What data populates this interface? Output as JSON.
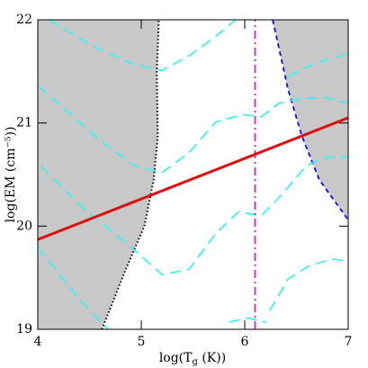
{
  "chart_data": {
    "type": "line",
    "xlabel": {
      "main": "log(T",
      "sub": "g",
      "rest": " (K))"
    },
    "ylabel": "log(EM (cm⁻⁵))",
    "xlim": [
      4,
      7
    ],
    "ylim": [
      19,
      22
    ],
    "xticks": [
      4,
      5,
      6,
      7
    ],
    "yticks": [
      19,
      20,
      21,
      22
    ],
    "series": [
      {
        "color": "#c8c8c8",
        "fill_side": "left",
        "dash": "dotted",
        "line_color": "#000000",
        "x": [
          4.62,
          4.85,
          5.03,
          5.12,
          5.16,
          5.15,
          5.17
        ],
        "values": [
          19,
          19.58,
          20,
          20.45,
          20.88,
          21.49,
          22
        ]
      },
      {
        "color": "#c8c8c8",
        "fill_side": "right",
        "dash": "dashed",
        "line_color": "#1010d0",
        "x": [
          6.27,
          6.42,
          6.55,
          6.72,
          7
        ],
        "values": [
          22,
          21.32,
          20.88,
          20.45,
          20.06
        ]
      },
      {
        "color": "#40f0f0",
        "dash": "longdash",
        "x": [
          4.11,
          4.5,
          4.94,
          5.2,
          5.46,
          5.72,
          5.91
        ],
        "values": [
          22,
          21.76,
          21.56,
          21.51,
          21.65,
          21.84,
          22
        ]
      },
      {
        "color": "#40f0f0",
        "dash": "longdash",
        "x": [
          6.42,
          6.68,
          7
        ],
        "values": [
          21.45,
          21.58,
          21.67
        ]
      },
      {
        "color": "#40f0f0",
        "dash": "longdash",
        "x": [
          4,
          4.24,
          4.59,
          4.94,
          5.2,
          5.46,
          5.72,
          5.98,
          6.16,
          6.33,
          6.5,
          6.77,
          7
        ],
        "values": [
          21.36,
          21.15,
          20.84,
          20.58,
          20.52,
          20.71,
          21.01,
          21.08,
          21.06,
          21.19,
          21.23,
          21.25,
          21.19
        ]
      },
      {
        "color": "#40f0f0",
        "dash": "longdash",
        "x": [
          4.03,
          4.42,
          4.85,
          5.2,
          5.46,
          5.72,
          5.94,
          6.16,
          6.37,
          6.59,
          6.77,
          7
        ],
        "values": [
          20.58,
          20.19,
          19.84,
          19.53,
          19.58,
          19.93,
          20.14,
          20.1,
          20.32,
          20.58,
          20.67,
          20.67
        ]
      },
      {
        "color": "#40f0f0",
        "dash": "longdash",
        "x": [
          4,
          4.24,
          4.5,
          4.68
        ],
        "values": [
          19.79,
          19.49,
          19.18,
          19
        ]
      },
      {
        "color": "#40f0f0",
        "dash": "longdash",
        "x": [
          6.24,
          6.42,
          6.63,
          6.85,
          7
        ],
        "values": [
          19.18,
          19.49,
          19.62,
          19.68,
          19.66
        ]
      },
      {
        "color": "#40f0f0",
        "dash": "longdash",
        "x": [
          5.85,
          6.03,
          6.2
        ],
        "values": [
          19.07,
          19.11,
          19.07
        ]
      },
      {
        "color": "#d020d0",
        "dash": "dashdot",
        "x": [
          6.1,
          6.1
        ],
        "values": [
          19,
          22
        ]
      },
      {
        "color": "#e01010",
        "dash": "solid",
        "width": 3,
        "x": [
          4,
          7
        ],
        "values": [
          19.87,
          21.05
        ]
      }
    ]
  }
}
